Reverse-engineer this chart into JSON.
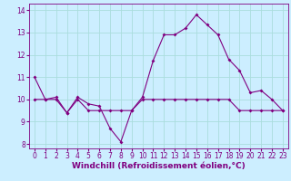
{
  "title": "",
  "xlabel": "Windchill (Refroidissement éolien,°C)",
  "ylabel": "",
  "background_color": "#cceeff",
  "line_color": "#800080",
  "grid_color": "#aadddd",
  "xlim": [
    -0.5,
    23.5
  ],
  "ylim": [
    7.8,
    14.3
  ],
  "yticks": [
    8,
    9,
    10,
    11,
    12,
    13,
    14
  ],
  "xticks": [
    0,
    1,
    2,
    3,
    4,
    5,
    6,
    7,
    8,
    9,
    10,
    11,
    12,
    13,
    14,
    15,
    16,
    17,
    18,
    19,
    20,
    21,
    22,
    23
  ],
  "line1_x": [
    0,
    1,
    2,
    3,
    4,
    5,
    6,
    7,
    8,
    9,
    10,
    11,
    12,
    13,
    14,
    15,
    16,
    17,
    18,
    19,
    20,
    21,
    22,
    23
  ],
  "line1_y": [
    11.0,
    10.0,
    10.1,
    9.4,
    10.1,
    9.8,
    9.7,
    8.7,
    8.1,
    9.5,
    10.1,
    11.75,
    12.9,
    12.9,
    13.2,
    13.8,
    13.35,
    12.9,
    11.8,
    11.3,
    10.3,
    10.4,
    10.0,
    9.5
  ],
  "line2_x": [
    0,
    1,
    2,
    3,
    4,
    5,
    6,
    7,
    8,
    9,
    10,
    11,
    12,
    13,
    14,
    15,
    16,
    17,
    18,
    19,
    20,
    21,
    22,
    23
  ],
  "line2_y": [
    10.0,
    10.0,
    10.0,
    9.4,
    10.0,
    9.5,
    9.5,
    9.5,
    9.5,
    9.5,
    10.0,
    10.0,
    10.0,
    10.0,
    10.0,
    10.0,
    10.0,
    10.0,
    10.0,
    9.5,
    9.5,
    9.5,
    9.5,
    9.5
  ],
  "fontsize_label": 6,
  "fontsize_tick": 5.5,
  "fontsize_xlabel": 6.5,
  "marker_size": 2.0,
  "line_width": 0.8
}
